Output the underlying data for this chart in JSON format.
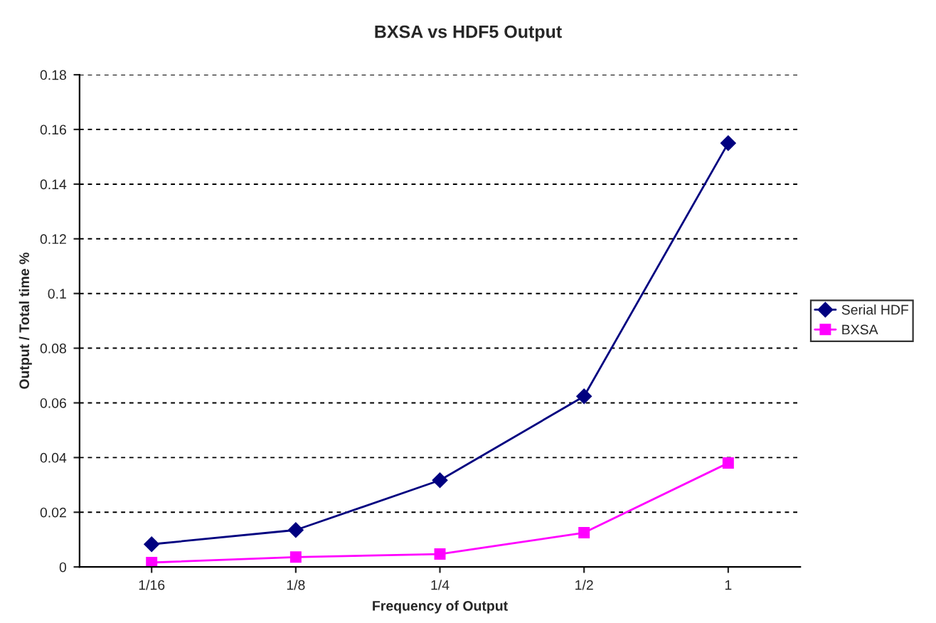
{
  "chart_data": {
    "type": "line",
    "title": "BXSA vs HDF5 Output",
    "xlabel": "Frequency of Output",
    "ylabel": "Output / Total time %",
    "categories": [
      "1/16",
      "1/8",
      "1/4",
      "1/2",
      "1"
    ],
    "series": [
      {
        "name": "Serial HDF",
        "color": "#000080",
        "marker": "diamond",
        "values": [
          0.0083,
          0.0135,
          0.0317,
          0.0624,
          0.155
        ]
      },
      {
        "name": "BXSA",
        "color": "#ff00ff",
        "marker": "square",
        "values": [
          0.0016,
          0.0036,
          0.0047,
          0.0125,
          0.038
        ]
      }
    ],
    "ylim": [
      0,
      0.18
    ],
    "yticks": [
      0,
      0.02,
      0.04,
      0.06,
      0.08,
      0.1,
      0.12,
      0.14,
      0.16,
      0.18
    ],
    "grid": "y",
    "legend": "right"
  }
}
